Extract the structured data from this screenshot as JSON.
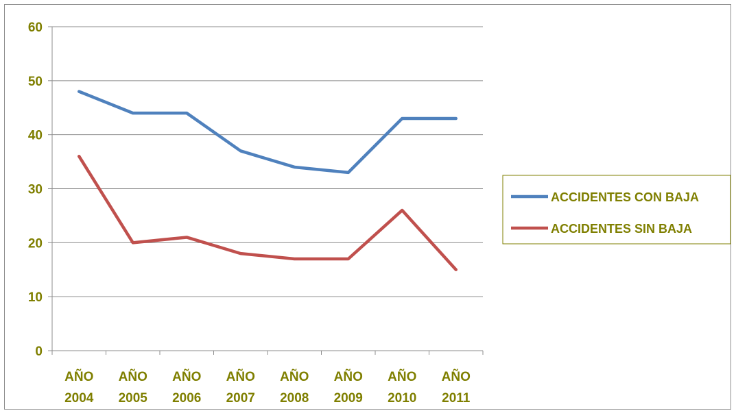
{
  "chart_data": {
    "type": "line",
    "title": "",
    "xlabel": "",
    "ylabel": "",
    "categories": [
      [
        "AÑO",
        "2004"
      ],
      [
        "AÑO",
        "2005"
      ],
      [
        "AÑO",
        "2006"
      ],
      [
        "AÑO",
        "2007"
      ],
      [
        "AÑO",
        "2008"
      ],
      [
        "AÑO",
        "2009"
      ],
      [
        "AÑO",
        "2010"
      ],
      [
        "AÑO",
        "2011"
      ]
    ],
    "ylim": [
      0,
      60
    ],
    "yticks": [
      "0",
      "10",
      "20",
      "30",
      "40",
      "50",
      "60"
    ],
    "grid": true,
    "legend_position": "right",
    "series": [
      {
        "name": "ACCIDENTES CON BAJA",
        "color": "#4f81bd",
        "values": [
          48,
          44,
          44,
          37,
          34,
          33,
          43,
          43
        ]
      },
      {
        "name": "ACCIDENTES SIN BAJA",
        "color": "#c0504d",
        "values": [
          36,
          20,
          21,
          18,
          17,
          17,
          26,
          15
        ]
      }
    ],
    "text_color": "#7f7f00",
    "grid_color": "#8c8c8c"
  }
}
